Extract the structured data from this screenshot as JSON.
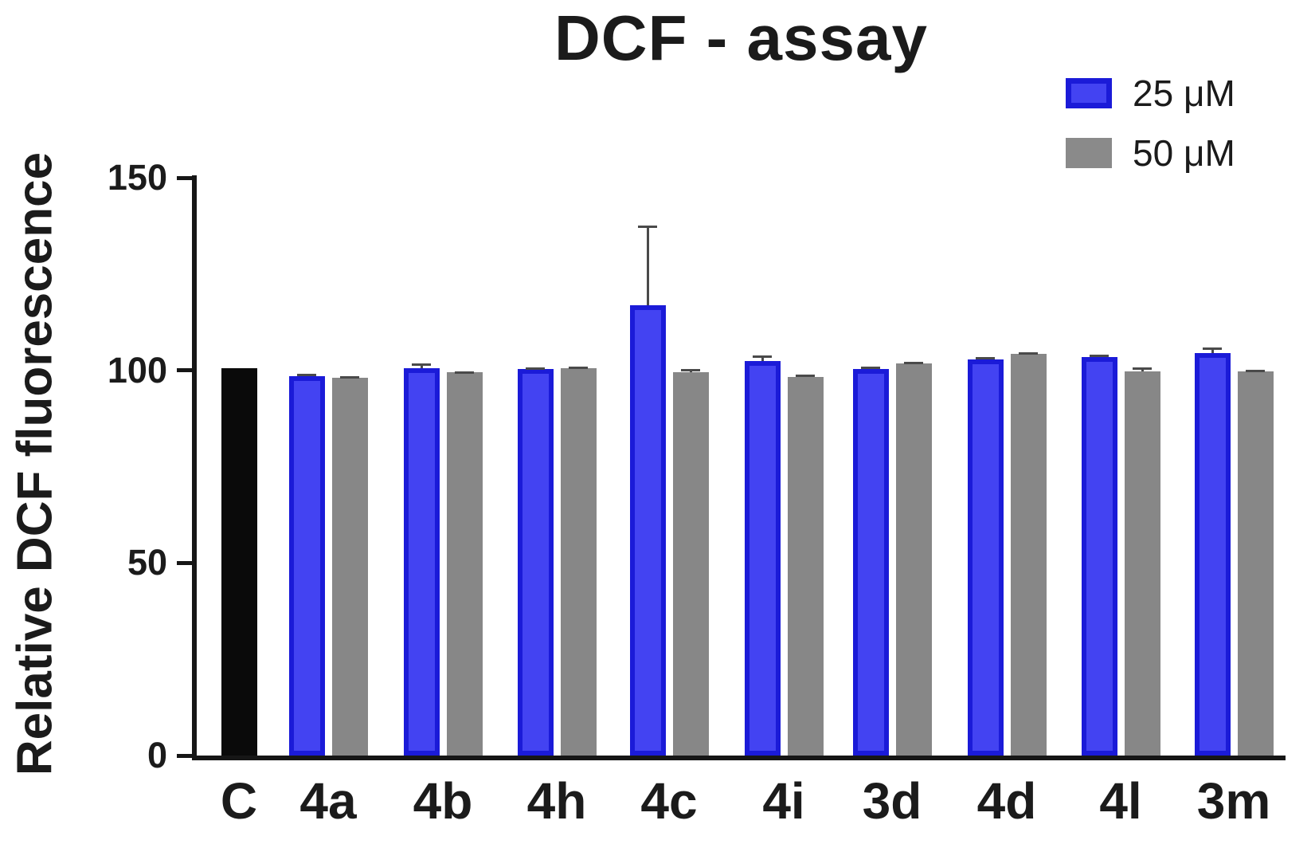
{
  "figure": {
    "title": "DCF - assay",
    "y_axis_title": "Relative DCF fluorescence"
  },
  "legend": {
    "items": [
      {
        "label": "25 μM",
        "series": "25uM",
        "swatch_fill": "#4343f2",
        "swatch_border": "#1b1bd8"
      },
      {
        "label": "50 μM",
        "series": "50uM",
        "swatch_fill": "#8a8a8a",
        "swatch_border": "#8a8a8a"
      }
    ]
  },
  "chart_data": {
    "type": "bar",
    "title": "DCF - assay",
    "xlabel": "",
    "ylabel": "Relative DCF fluorescence",
    "ylim": [
      0,
      150
    ],
    "yticks": [
      0,
      50,
      100,
      150
    ],
    "grid": false,
    "legend_position": "top-right",
    "error_bars": "upper-only",
    "categories": [
      "C",
      "4a",
      "4b",
      "4h",
      "4c",
      "4i",
      "3d",
      "4d",
      "4l",
      "3m"
    ],
    "series_styles": {
      "control": {
        "fill": "#0a0a0a",
        "border": "#0a0a0a"
      },
      "25uM": {
        "fill": "#4343f2",
        "border": "#1b1bd8"
      },
      "50uM": {
        "fill": "#878787",
        "border": "#878787"
      }
    },
    "groups": [
      {
        "label": "C",
        "bars": [
          {
            "series": "control",
            "value": 100.5,
            "error": 0
          }
        ]
      },
      {
        "label": "4a",
        "bars": [
          {
            "series": "25uM",
            "value": 98.5,
            "error": 0.6
          },
          {
            "series": "50uM",
            "value": 98.0,
            "error": 0.4
          }
        ]
      },
      {
        "label": "4b",
        "bars": [
          {
            "series": "25uM",
            "value": 100.5,
            "error": 1.2
          },
          {
            "series": "50uM",
            "value": 99.5,
            "error": 0.3
          }
        ]
      },
      {
        "label": "4h",
        "bars": [
          {
            "series": "25uM",
            "value": 100.3,
            "error": 0.5
          },
          {
            "series": "50uM",
            "value": 100.5,
            "error": 0.4
          }
        ]
      },
      {
        "label": "4c",
        "bars": [
          {
            "series": "25uM",
            "value": 117.0,
            "error": 20.5
          },
          {
            "series": "50uM",
            "value": 99.5,
            "error": 0.8
          }
        ]
      },
      {
        "label": "4i",
        "bars": [
          {
            "series": "25uM",
            "value": 102.5,
            "error": 1.4
          },
          {
            "series": "50uM",
            "value": 98.3,
            "error": 0.6
          }
        ]
      },
      {
        "label": "3d",
        "bars": [
          {
            "series": "25uM",
            "value": 100.4,
            "error": 0.5
          },
          {
            "series": "50uM",
            "value": 101.8,
            "error": 0.5
          }
        ]
      },
      {
        "label": "4d",
        "bars": [
          {
            "series": "25uM",
            "value": 102.8,
            "error": 0.6
          },
          {
            "series": "50uM",
            "value": 104.3,
            "error": 0.4
          }
        ]
      },
      {
        "label": "4l",
        "bars": [
          {
            "series": "25uM",
            "value": 103.4,
            "error": 0.6
          },
          {
            "series": "50uM",
            "value": 99.8,
            "error": 1.0
          }
        ]
      },
      {
        "label": "3m",
        "bars": [
          {
            "series": "25uM",
            "value": 104.5,
            "error": 1.5
          },
          {
            "series": "50uM",
            "value": 99.8,
            "error": 0.4
          }
        ]
      }
    ]
  }
}
